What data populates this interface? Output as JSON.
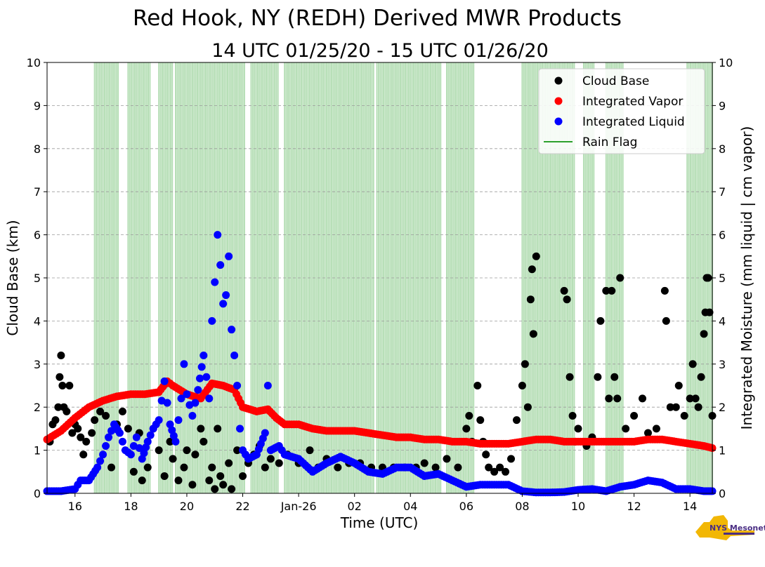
{
  "title": "Red Hook, NY (REDH) Derived MWR Products",
  "subtitle": "14 UTC 01/25/20 - 15 UTC 01/26/20",
  "logo_text": "NYS Mesonet",
  "colors": {
    "cloud_base": "#000000",
    "vapor": "#ff0000",
    "liquid": "#0000ff",
    "rain": "#2ca02c",
    "grid": "#9a9a9a"
  },
  "chart_data": {
    "type": "scatter",
    "xlabel": "Time (UTC)",
    "ylabel_left": "Cloud Base (km)",
    "ylabel_right": "Integrated Moisture (mm liquid | cm vapor)",
    "xlim": [
      15.0,
      38.8
    ],
    "ylim": [
      0,
      10
    ],
    "x_unit": "hours since 00 UTC 01/25/20",
    "x_ticks": [
      {
        "x": 16,
        "label": "16"
      },
      {
        "x": 18,
        "label": "18"
      },
      {
        "x": 20,
        "label": "20"
      },
      {
        "x": 22,
        "label": "22"
      },
      {
        "x": 24,
        "label": "Jan-26"
      },
      {
        "x": 26,
        "label": "02"
      },
      {
        "x": 28,
        "label": "04"
      },
      {
        "x": 30,
        "label": "06"
      },
      {
        "x": 32,
        "label": "08"
      },
      {
        "x": 34,
        "label": "10"
      },
      {
        "x": 36,
        "label": "12"
      },
      {
        "x": 38,
        "label": "14"
      }
    ],
    "y_ticks": [
      "0",
      "1",
      "2",
      "3",
      "4",
      "5",
      "6",
      "7",
      "8",
      "9",
      "10"
    ],
    "grid": "horizontal dashed",
    "legend_position": "top-right",
    "legend": [
      {
        "key": "cloud_base",
        "label": "Cloud Base",
        "kind": "dot"
      },
      {
        "key": "vapor",
        "label": "Integrated Vapor",
        "kind": "dot"
      },
      {
        "key": "liquid",
        "label": "Integrated Liquid",
        "kind": "dot"
      },
      {
        "key": "rain",
        "label": "Rain Flag",
        "kind": "line"
      }
    ],
    "rain_flag_periods": [
      [
        16.7,
        17.55
      ],
      [
        17.9,
        18.7
      ],
      [
        19.0,
        19.5
      ],
      [
        19.6,
        22.1
      ],
      [
        22.3,
        23.3
      ],
      [
        23.5,
        26.7
      ],
      [
        26.8,
        29.1
      ],
      [
        29.3,
        30.3
      ],
      [
        32.0,
        33.9
      ],
      [
        34.2,
        34.6
      ],
      [
        35.0,
        35.6
      ],
      [
        37.9,
        38.8
      ]
    ],
    "series": [
      {
        "name": "Integrated Vapor",
        "points": [
          [
            15.0,
            1.25
          ],
          [
            15.5,
            1.45
          ],
          [
            16.0,
            1.75
          ],
          [
            16.5,
            2.0
          ],
          [
            17.0,
            2.15
          ],
          [
            17.5,
            2.25
          ],
          [
            18.0,
            2.3
          ],
          [
            18.5,
            2.3
          ],
          [
            19.0,
            2.35
          ],
          [
            19.3,
            2.6
          ],
          [
            19.5,
            2.5
          ],
          [
            20.0,
            2.3
          ],
          [
            20.5,
            2.2
          ],
          [
            20.9,
            2.55
          ],
          [
            21.3,
            2.5
          ],
          [
            21.7,
            2.4
          ],
          [
            22.0,
            2.0
          ],
          [
            22.5,
            1.9
          ],
          [
            22.9,
            1.95
          ],
          [
            23.2,
            1.75
          ],
          [
            23.5,
            1.6
          ],
          [
            24.0,
            1.6
          ],
          [
            24.5,
            1.5
          ],
          [
            25.0,
            1.45
          ],
          [
            25.5,
            1.45
          ],
          [
            26.0,
            1.45
          ],
          [
            26.5,
            1.4
          ],
          [
            27.0,
            1.35
          ],
          [
            27.5,
            1.3
          ],
          [
            28.0,
            1.3
          ],
          [
            28.5,
            1.25
          ],
          [
            29.0,
            1.25
          ],
          [
            29.5,
            1.2
          ],
          [
            30.0,
            1.2
          ],
          [
            30.5,
            1.15
          ],
          [
            31.0,
            1.15
          ],
          [
            31.5,
            1.15
          ],
          [
            32.0,
            1.2
          ],
          [
            32.5,
            1.25
          ],
          [
            33.0,
            1.25
          ],
          [
            33.5,
            1.2
          ],
          [
            34.0,
            1.2
          ],
          [
            34.5,
            1.2
          ],
          [
            35.0,
            1.2
          ],
          [
            35.5,
            1.2
          ],
          [
            36.0,
            1.2
          ],
          [
            36.5,
            1.25
          ],
          [
            37.0,
            1.25
          ],
          [
            37.5,
            1.2
          ],
          [
            38.0,
            1.15
          ],
          [
            38.5,
            1.1
          ],
          [
            38.8,
            1.05
          ]
        ]
      },
      {
        "name": "Integrated Liquid",
        "points": [
          [
            15.0,
            0.05
          ],
          [
            15.5,
            0.05
          ],
          [
            16.0,
            0.1
          ],
          [
            16.2,
            0.3
          ],
          [
            16.5,
            0.3
          ],
          [
            16.8,
            0.6
          ],
          [
            17.0,
            0.9
          ],
          [
            17.2,
            1.3
          ],
          [
            17.4,
            1.6
          ],
          [
            17.6,
            1.4
          ],
          [
            17.8,
            1.0
          ],
          [
            18.0,
            0.9
          ],
          [
            18.2,
            1.3
          ],
          [
            18.4,
            0.8
          ],
          [
            18.6,
            1.2
          ],
          [
            18.8,
            1.5
          ],
          [
            19.0,
            1.7
          ],
          [
            19.2,
            2.6
          ],
          [
            19.4,
            1.6
          ],
          [
            19.6,
            1.2
          ],
          [
            19.8,
            2.2
          ],
          [
            19.9,
            3.0
          ],
          [
            20.0,
            2.3
          ],
          [
            20.2,
            1.8
          ],
          [
            20.4,
            2.4
          ],
          [
            20.6,
            3.2
          ],
          [
            20.8,
            2.2
          ],
          [
            20.9,
            4.0
          ],
          [
            21.0,
            4.9
          ],
          [
            21.1,
            6.0
          ],
          [
            21.2,
            5.3
          ],
          [
            21.3,
            4.4
          ],
          [
            21.4,
            4.6
          ],
          [
            21.5,
            5.5
          ],
          [
            21.6,
            3.8
          ],
          [
            21.7,
            3.2
          ],
          [
            21.8,
            2.5
          ],
          [
            21.9,
            1.5
          ],
          [
            22.0,
            1.0
          ],
          [
            22.2,
            0.8
          ],
          [
            22.5,
            0.9
          ],
          [
            22.8,
            1.4
          ],
          [
            22.9,
            2.5
          ],
          [
            23.0,
            1.0
          ],
          [
            23.3,
            1.1
          ],
          [
            23.5,
            0.9
          ],
          [
            24.0,
            0.8
          ],
          [
            24.5,
            0.5
          ],
          [
            25.0,
            0.7
          ],
          [
            25.5,
            0.85
          ],
          [
            26.0,
            0.7
          ],
          [
            26.5,
            0.5
          ],
          [
            27.0,
            0.45
          ],
          [
            27.5,
            0.6
          ],
          [
            28.0,
            0.6
          ],
          [
            28.5,
            0.4
          ],
          [
            29.0,
            0.45
          ],
          [
            29.5,
            0.3
          ],
          [
            30.0,
            0.15
          ],
          [
            30.5,
            0.2
          ],
          [
            31.0,
            0.2
          ],
          [
            31.5,
            0.2
          ],
          [
            32.0,
            0.05
          ],
          [
            32.5,
            0.02
          ],
          [
            33.0,
            0.02
          ],
          [
            33.5,
            0.03
          ],
          [
            34.0,
            0.08
          ],
          [
            34.5,
            0.1
          ],
          [
            35.0,
            0.05
          ],
          [
            35.5,
            0.15
          ],
          [
            36.0,
            0.2
          ],
          [
            36.5,
            0.3
          ],
          [
            37.0,
            0.25
          ],
          [
            37.5,
            0.1
          ],
          [
            38.0,
            0.1
          ],
          [
            38.5,
            0.05
          ],
          [
            38.8,
            0.05
          ]
        ]
      },
      {
        "name": "Cloud Base",
        "points": [
          [
            15.1,
            1.2
          ],
          [
            15.2,
            1.6
          ],
          [
            15.3,
            1.7
          ],
          [
            15.4,
            2.0
          ],
          [
            15.45,
            2.7
          ],
          [
            15.5,
            3.2
          ],
          [
            15.55,
            2.5
          ],
          [
            15.6,
            2.0
          ],
          [
            15.7,
            1.9
          ],
          [
            15.8,
            2.5
          ],
          [
            15.9,
            1.4
          ],
          [
            16.0,
            1.6
          ],
          [
            16.1,
            1.5
          ],
          [
            16.2,
            1.3
          ],
          [
            16.3,
            0.9
          ],
          [
            16.4,
            1.2
          ],
          [
            16.6,
            1.4
          ],
          [
            16.7,
            1.7
          ],
          [
            16.9,
            1.9
          ],
          [
            17.1,
            1.8
          ],
          [
            17.3,
            0.6
          ],
          [
            17.5,
            1.6
          ],
          [
            17.7,
            1.9
          ],
          [
            17.9,
            1.5
          ],
          [
            18.1,
            0.5
          ],
          [
            18.3,
            1.4
          ],
          [
            18.4,
            0.3
          ],
          [
            18.6,
            0.6
          ],
          [
            18.8,
            1.5
          ],
          [
            19.0,
            1.0
          ],
          [
            19.2,
            0.4
          ],
          [
            19.4,
            1.2
          ],
          [
            19.5,
            0.8
          ],
          [
            19.7,
            0.3
          ],
          [
            19.9,
            0.6
          ],
          [
            20.0,
            1.0
          ],
          [
            20.2,
            0.2
          ],
          [
            20.3,
            0.9
          ],
          [
            20.5,
            1.5
          ],
          [
            20.6,
            1.2
          ],
          [
            20.8,
            0.3
          ],
          [
            20.9,
            0.6
          ],
          [
            21.0,
            0.1
          ],
          [
            21.1,
            1.5
          ],
          [
            21.2,
            0.4
          ],
          [
            21.3,
            0.2
          ],
          [
            21.5,
            0.7
          ],
          [
            21.6,
            0.1
          ],
          [
            21.8,
            1.0
          ],
          [
            22.0,
            0.4
          ],
          [
            22.2,
            0.7
          ],
          [
            22.4,
            0.9
          ],
          [
            22.6,
            1.1
          ],
          [
            22.8,
            0.6
          ],
          [
            23.0,
            0.8
          ],
          [
            23.3,
            0.7
          ],
          [
            23.6,
            0.9
          ],
          [
            24.0,
            0.7
          ],
          [
            24.4,
            1.0
          ],
          [
            24.7,
            0.6
          ],
          [
            25.0,
            0.8
          ],
          [
            25.4,
            0.6
          ],
          [
            25.8,
            0.7
          ],
          [
            26.2,
            0.7
          ],
          [
            26.6,
            0.6
          ],
          [
            27.0,
            0.6
          ],
          [
            27.4,
            0.6
          ],
          [
            27.8,
            0.6
          ],
          [
            28.2,
            0.6
          ],
          [
            28.5,
            0.7
          ],
          [
            28.9,
            0.6
          ],
          [
            29.3,
            0.8
          ],
          [
            29.7,
            0.6
          ],
          [
            30.0,
            1.5
          ],
          [
            30.1,
            1.8
          ],
          [
            30.2,
            1.2
          ],
          [
            30.4,
            2.5
          ],
          [
            30.5,
            1.7
          ],
          [
            30.6,
            1.2
          ],
          [
            30.7,
            0.9
          ],
          [
            30.8,
            0.6
          ],
          [
            31.0,
            0.5
          ],
          [
            31.2,
            0.6
          ],
          [
            31.4,
            0.5
          ],
          [
            31.6,
            0.8
          ],
          [
            31.8,
            1.7
          ],
          [
            32.0,
            2.5
          ],
          [
            32.1,
            3.0
          ],
          [
            32.2,
            2.0
          ],
          [
            32.3,
            4.5
          ],
          [
            32.35,
            5.2
          ],
          [
            32.4,
            3.7
          ],
          [
            32.5,
            5.5
          ],
          [
            33.5,
            4.7
          ],
          [
            33.6,
            4.5
          ],
          [
            33.7,
            2.7
          ],
          [
            33.8,
            1.8
          ],
          [
            33.9,
            1.2
          ],
          [
            34.0,
            1.5
          ],
          [
            34.3,
            1.1
          ],
          [
            34.5,
            1.3
          ],
          [
            34.7,
            2.7
          ],
          [
            34.8,
            4.0
          ],
          [
            35.0,
            4.7
          ],
          [
            35.1,
            2.2
          ],
          [
            35.2,
            4.7
          ],
          [
            35.3,
            2.7
          ],
          [
            35.4,
            2.2
          ],
          [
            35.5,
            5.0
          ],
          [
            35.7,
            1.5
          ],
          [
            36.0,
            1.8
          ],
          [
            36.3,
            2.2
          ],
          [
            36.5,
            1.4
          ],
          [
            36.8,
            1.5
          ],
          [
            37.1,
            4.7
          ],
          [
            37.15,
            4.0
          ],
          [
            37.3,
            2.0
          ],
          [
            37.5,
            2.0
          ],
          [
            37.6,
            2.5
          ],
          [
            37.8,
            1.8
          ],
          [
            38.0,
            2.2
          ],
          [
            38.1,
            3.0
          ],
          [
            38.2,
            2.2
          ],
          [
            38.3,
            2.0
          ],
          [
            38.4,
            2.7
          ],
          [
            38.5,
            3.7
          ],
          [
            38.55,
            4.2
          ],
          [
            38.6,
            5.0
          ],
          [
            38.65,
            5.0
          ],
          [
            38.7,
            4.2
          ],
          [
            38.8,
            1.8
          ]
        ]
      }
    ]
  }
}
